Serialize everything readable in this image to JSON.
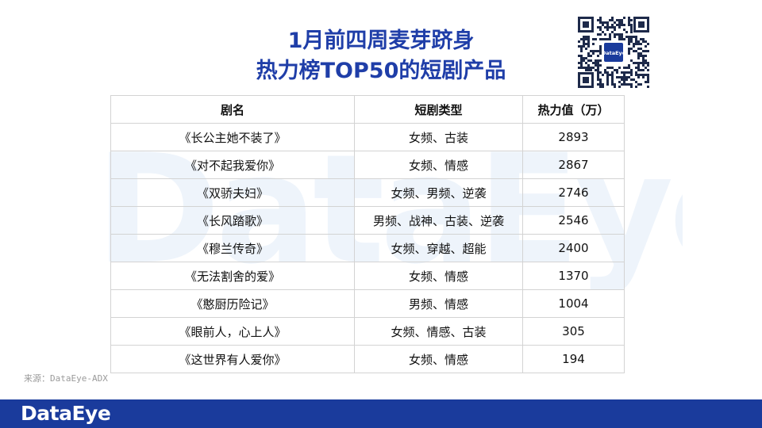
{
  "title": {
    "line1": "1月前四周麦芽跻身",
    "line2": "热力榜TOP50的短剧产品"
  },
  "watermark": "DataEye",
  "qr": {
    "logo_text": "DataEye"
  },
  "table": {
    "headers": [
      "剧名",
      "短剧类型",
      "热力值（万）"
    ],
    "rows": [
      [
        "《长公主她不装了》",
        "女频、古装",
        "2893"
      ],
      [
        "《对不起我爱你》",
        "女频、情感",
        "2867"
      ],
      [
        "《双骄夫妇》",
        "女频、男频、逆袭",
        "2746"
      ],
      [
        "《长风踏歌》",
        "男频、战神、古装、逆袭",
        "2546"
      ],
      [
        "《穆兰传奇》",
        "女频、穿越、超能",
        "2400"
      ],
      [
        "《无法割舍的爱》",
        "女频、情感",
        "1370"
      ],
      [
        "《憨厨历险记》",
        "男频、情感",
        "1004"
      ],
      [
        "《眼前人，心上人》",
        "女频、情感、古装",
        "305"
      ],
      [
        "《这世界有人爱你》",
        "女频、情感",
        "194"
      ]
    ]
  },
  "source": "来源：DataEye-ADX",
  "footer": {
    "logo": "DataEye",
    "bar_color": "#1a3b9c"
  },
  "colors": {
    "title": "#1f3ea8",
    "accent": "#1a3b9c"
  }
}
